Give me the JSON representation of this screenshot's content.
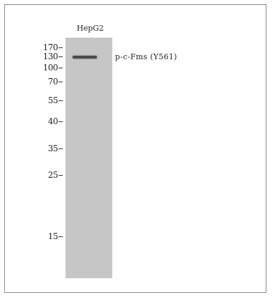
{
  "blot": {
    "sample_label": "HepG2",
    "target_label": "p-c-Fms (Y561)",
    "markers": [
      {
        "label": "170"
      },
      {
        "label": "130"
      },
      {
        "label": "100"
      },
      {
        "label": "70"
      },
      {
        "label": "55"
      },
      {
        "label": "40"
      },
      {
        "label": "35"
      },
      {
        "label": "25"
      },
      {
        "label": "15"
      }
    ]
  }
}
